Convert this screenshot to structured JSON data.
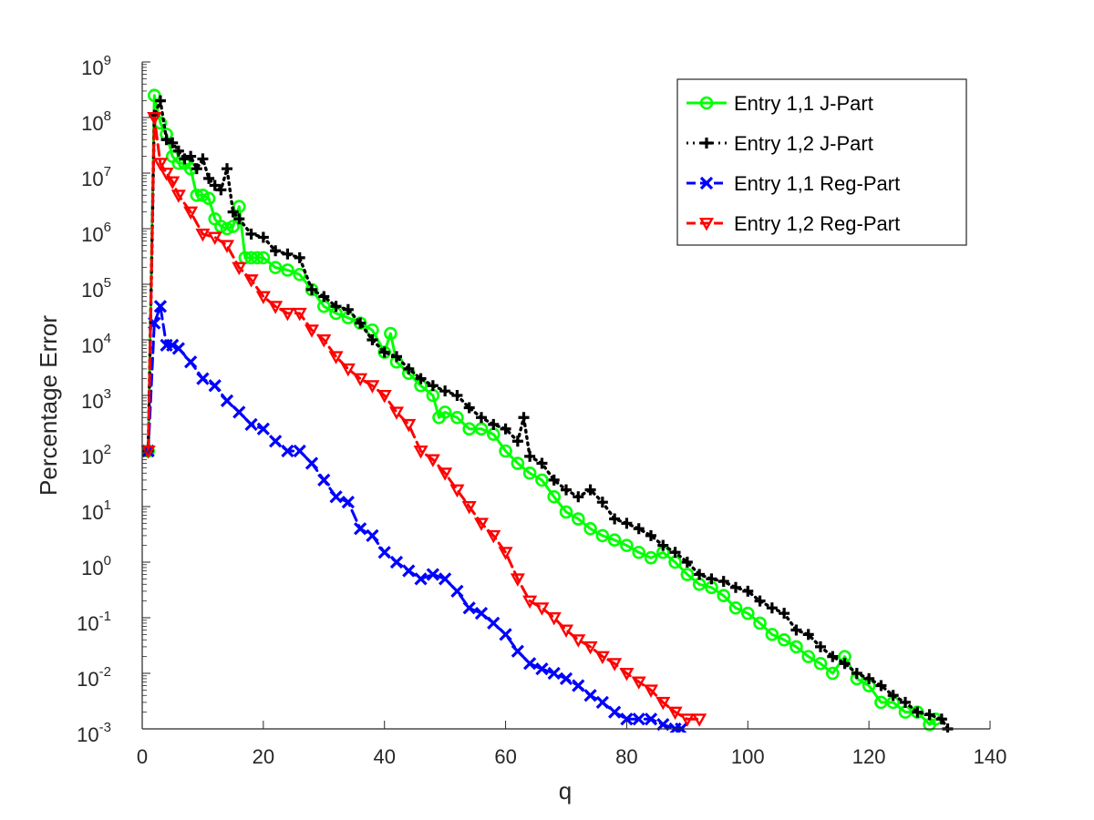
{
  "chart_data": {
    "type": "line",
    "title": "",
    "xlabel": "q",
    "ylabel": "Percentage  Error",
    "xlim": [
      0,
      140
    ],
    "ylim_log10": [
      -3,
      9
    ],
    "yscale": "log",
    "grid": false,
    "legend_position": "top-right",
    "x_ticks": [
      0,
      20,
      40,
      60,
      80,
      100,
      120,
      140
    ],
    "y_ticks": [
      {
        "base": "10",
        "exp": "-3"
      },
      {
        "base": "10",
        "exp": "-2"
      },
      {
        "base": "10",
        "exp": "-1"
      },
      {
        "base": "10",
        "exp": "0"
      },
      {
        "base": "10",
        "exp": "1"
      },
      {
        "base": "10",
        "exp": "2"
      },
      {
        "base": "10",
        "exp": "3"
      },
      {
        "base": "10",
        "exp": "4"
      },
      {
        "base": "10",
        "exp": "5"
      },
      {
        "base": "10",
        "exp": "6"
      },
      {
        "base": "10",
        "exp": "7"
      },
      {
        "base": "10",
        "exp": "8"
      },
      {
        "base": "10",
        "exp": "9"
      }
    ],
    "series": [
      {
        "name": "Entry 1,1 J-Part",
        "color": "#00ff00",
        "line_style": "solid",
        "marker": "circle",
        "points": [
          [
            1,
            100
          ],
          [
            2,
            250000000
          ],
          [
            3,
            80000000
          ],
          [
            4,
            50000000
          ],
          [
            5,
            20000000
          ],
          [
            6,
            15000000
          ],
          [
            7,
            15000000
          ],
          [
            8,
            12000000
          ],
          [
            9,
            4000000
          ],
          [
            10,
            4000000
          ],
          [
            11,
            3500000
          ],
          [
            12,
            1500000
          ],
          [
            13,
            1100000
          ],
          [
            14,
            1000000
          ],
          [
            15,
            1100000
          ],
          [
            16,
            2500000
          ],
          [
            17,
            300000
          ],
          [
            18,
            300000
          ],
          [
            19,
            300000
          ],
          [
            20,
            300000
          ],
          [
            22,
            200000
          ],
          [
            24,
            180000
          ],
          [
            26,
            150000
          ],
          [
            28,
            80000
          ],
          [
            30,
            40000
          ],
          [
            32,
            30000
          ],
          [
            34,
            25000
          ],
          [
            36,
            20000
          ],
          [
            38,
            15000
          ],
          [
            40,
            6000
          ],
          [
            41,
            13000
          ],
          [
            42,
            4000
          ],
          [
            44,
            2500
          ],
          [
            46,
            1500
          ],
          [
            48,
            1000
          ],
          [
            49,
            400
          ],
          [
            50,
            500
          ],
          [
            52,
            400
          ],
          [
            54,
            250
          ],
          [
            56,
            250
          ],
          [
            58,
            200
          ],
          [
            60,
            100
          ],
          [
            62,
            60
          ],
          [
            64,
            40
          ],
          [
            66,
            30
          ],
          [
            68,
            15
          ],
          [
            70,
            8
          ],
          [
            72,
            6
          ],
          [
            74,
            4
          ],
          [
            76,
            3
          ],
          [
            78,
            2.5
          ],
          [
            80,
            2
          ],
          [
            82,
            1.5
          ],
          [
            84,
            1.2
          ],
          [
            86,
            1.5
          ],
          [
            88,
            1
          ],
          [
            90,
            0.6
          ],
          [
            92,
            0.4
          ],
          [
            94,
            0.35
          ],
          [
            96,
            0.25
          ],
          [
            98,
            0.15
          ],
          [
            100,
            0.12
          ],
          [
            102,
            0.08
          ],
          [
            104,
            0.05
          ],
          [
            106,
            0.04
          ],
          [
            108,
            0.03
          ],
          [
            110,
            0.02
          ],
          [
            112,
            0.015
          ],
          [
            114,
            0.01
          ],
          [
            116,
            0.02
          ],
          [
            118,
            0.008
          ],
          [
            120,
            0.006
          ],
          [
            122,
            0.003
          ],
          [
            124,
            0.003
          ],
          [
            126,
            0.002
          ],
          [
            128,
            0.002
          ],
          [
            130,
            0.0012
          ],
          [
            131,
            0.0015
          ]
        ]
      },
      {
        "name": "Entry 1,2 J-Part",
        "color": "#000000",
        "line_style": "dotted",
        "marker": "plus",
        "points": [
          [
            1,
            100
          ],
          [
            2,
            110000000
          ],
          [
            3,
            200000000
          ],
          [
            4,
            40000000
          ],
          [
            5,
            35000000
          ],
          [
            6,
            25000000
          ],
          [
            7,
            18000000
          ],
          [
            8,
            20000000
          ],
          [
            9,
            12000000
          ],
          [
            10,
            18000000
          ],
          [
            11,
            8000000
          ],
          [
            12,
            6000000
          ],
          [
            13,
            5000000
          ],
          [
            14,
            12000000
          ],
          [
            15,
            2000000
          ],
          [
            16,
            1500000
          ],
          [
            18,
            800000
          ],
          [
            20,
            700000
          ],
          [
            22,
            400000
          ],
          [
            24,
            350000
          ],
          [
            26,
            300000
          ],
          [
            28,
            80000
          ],
          [
            30,
            60000
          ],
          [
            32,
            40000
          ],
          [
            34,
            35000
          ],
          [
            36,
            20000
          ],
          [
            38,
            10000
          ],
          [
            40,
            6000
          ],
          [
            42,
            5000
          ],
          [
            44,
            3000
          ],
          [
            46,
            2000
          ],
          [
            48,
            1500
          ],
          [
            50,
            1200
          ],
          [
            52,
            1000
          ],
          [
            54,
            600
          ],
          [
            56,
            400
          ],
          [
            58,
            300
          ],
          [
            60,
            250
          ],
          [
            62,
            150
          ],
          [
            63,
            400
          ],
          [
            64,
            80
          ],
          [
            66,
            60
          ],
          [
            68,
            30
          ],
          [
            70,
            20
          ],
          [
            72,
            15
          ],
          [
            74,
            20
          ],
          [
            76,
            12
          ],
          [
            78,
            6
          ],
          [
            80,
            5
          ],
          [
            82,
            4
          ],
          [
            84,
            3
          ],
          [
            86,
            2
          ],
          [
            88,
            1.5
          ],
          [
            90,
            1
          ],
          [
            92,
            0.6
          ],
          [
            94,
            0.5
          ],
          [
            96,
            0.45
          ],
          [
            98,
            0.35
          ],
          [
            100,
            0.3
          ],
          [
            102,
            0.2
          ],
          [
            104,
            0.15
          ],
          [
            106,
            0.12
          ],
          [
            108,
            0.06
          ],
          [
            110,
            0.05
          ],
          [
            112,
            0.03
          ],
          [
            114,
            0.02
          ],
          [
            116,
            0.015
          ],
          [
            118,
            0.01
          ],
          [
            120,
            0.008
          ],
          [
            122,
            0.006
          ],
          [
            124,
            0.004
          ],
          [
            126,
            0.003
          ],
          [
            128,
            0.002
          ],
          [
            130,
            0.0018
          ],
          [
            132,
            0.0015
          ],
          [
            133,
            0.001
          ]
        ]
      },
      {
        "name": "Entry 1,1 Reg-Part",
        "color": "#0000ff",
        "line_style": "dashed",
        "marker": "x",
        "points": [
          [
            1,
            100
          ],
          [
            2,
            20000
          ],
          [
            3,
            40000
          ],
          [
            4,
            8000
          ],
          [
            5,
            8000
          ],
          [
            6,
            7000
          ],
          [
            8,
            4000
          ],
          [
            10,
            2000
          ],
          [
            12,
            1500
          ],
          [
            14,
            800
          ],
          [
            16,
            500
          ],
          [
            18,
            300
          ],
          [
            20,
            250
          ],
          [
            22,
            150
          ],
          [
            24,
            100
          ],
          [
            26,
            100
          ],
          [
            28,
            60
          ],
          [
            30,
            30
          ],
          [
            32,
            15
          ],
          [
            34,
            12
          ],
          [
            36,
            4
          ],
          [
            38,
            3
          ],
          [
            40,
            1.5
          ],
          [
            42,
            1
          ],
          [
            44,
            0.7
          ],
          [
            46,
            0.5
          ],
          [
            48,
            0.6
          ],
          [
            50,
            0.5
          ],
          [
            52,
            0.3
          ],
          [
            54,
            0.15
          ],
          [
            56,
            0.12
          ],
          [
            58,
            0.08
          ],
          [
            60,
            0.05
          ],
          [
            62,
            0.025
          ],
          [
            64,
            0.015
          ],
          [
            66,
            0.012
          ],
          [
            68,
            0.01
          ],
          [
            70,
            0.008
          ],
          [
            72,
            0.006
          ],
          [
            74,
            0.004
          ],
          [
            76,
            0.003
          ],
          [
            78,
            0.002
          ],
          [
            80,
            0.0015
          ],
          [
            82,
            0.0015
          ],
          [
            84,
            0.0015
          ],
          [
            86,
            0.0012
          ],
          [
            88,
            0.001
          ],
          [
            89,
            0.001
          ]
        ]
      },
      {
        "name": "Entry 1,2 Reg-Part",
        "color": "#ff0000",
        "line_style": "dashed",
        "marker": "triangle-down",
        "points": [
          [
            1,
            100
          ],
          [
            2,
            100000000
          ],
          [
            3,
            15000000
          ],
          [
            4,
            10000000
          ],
          [
            5,
            7000000
          ],
          [
            6,
            4000000
          ],
          [
            8,
            2000000
          ],
          [
            10,
            800000
          ],
          [
            12,
            700000
          ],
          [
            14,
            500000
          ],
          [
            16,
            200000
          ],
          [
            18,
            120000
          ],
          [
            20,
            60000
          ],
          [
            22,
            40000
          ],
          [
            24,
            30000
          ],
          [
            26,
            30000
          ],
          [
            28,
            15000
          ],
          [
            30,
            10000
          ],
          [
            32,
            5000
          ],
          [
            34,
            3000
          ],
          [
            36,
            2000
          ],
          [
            38,
            1500
          ],
          [
            40,
            1000
          ],
          [
            42,
            500
          ],
          [
            44,
            300
          ],
          [
            46,
            100
          ],
          [
            48,
            70
          ],
          [
            50,
            40
          ],
          [
            52,
            20
          ],
          [
            54,
            10
          ],
          [
            56,
            5
          ],
          [
            58,
            3
          ],
          [
            60,
            1.5
          ],
          [
            62,
            0.5
          ],
          [
            64,
            0.2
          ],
          [
            66,
            0.15
          ],
          [
            68,
            0.1
          ],
          [
            70,
            0.06
          ],
          [
            72,
            0.04
          ],
          [
            74,
            0.03
          ],
          [
            76,
            0.02
          ],
          [
            78,
            0.015
          ],
          [
            80,
            0.01
          ],
          [
            82,
            0.007
          ],
          [
            84,
            0.005
          ],
          [
            86,
            0.003
          ],
          [
            88,
            0.002
          ],
          [
            90,
            0.0015
          ],
          [
            92,
            0.0015
          ]
        ]
      }
    ]
  }
}
